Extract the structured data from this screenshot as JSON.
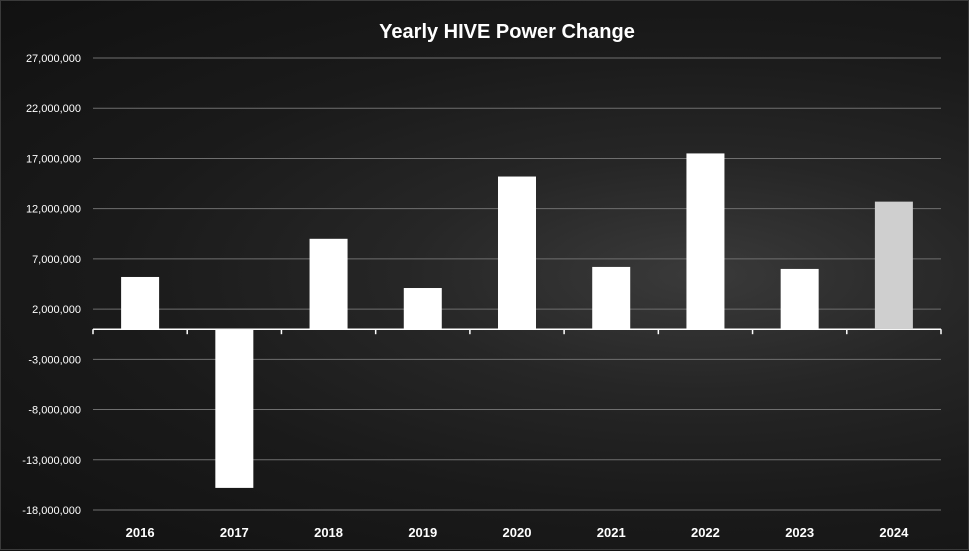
{
  "chart_data": {
    "type": "bar",
    "title": "Yearly HIVE Power Change",
    "categories": [
      "2016",
      "2017",
      "2018",
      "2019",
      "2020",
      "2021",
      "2022",
      "2023",
      "2024"
    ],
    "values": [
      5200000,
      -15800000,
      9000000,
      4100000,
      15200000,
      6200000,
      17500000,
      6000000,
      12700000
    ],
    "yticks": [
      "27,000,000",
      "22,000,000",
      "17,000,000",
      "12,000,000",
      "7,000,000",
      "2,000,000",
      "-3,000,000",
      "-8,000,000",
      "-13,000,000",
      "-18,000,000"
    ],
    "ylim": [
      -18000000,
      27000000
    ],
    "grid": true,
    "colors": {
      "bar": "#ffffff",
      "highlight_bar": "#cfcfcf",
      "text": "#ffffff"
    }
  }
}
